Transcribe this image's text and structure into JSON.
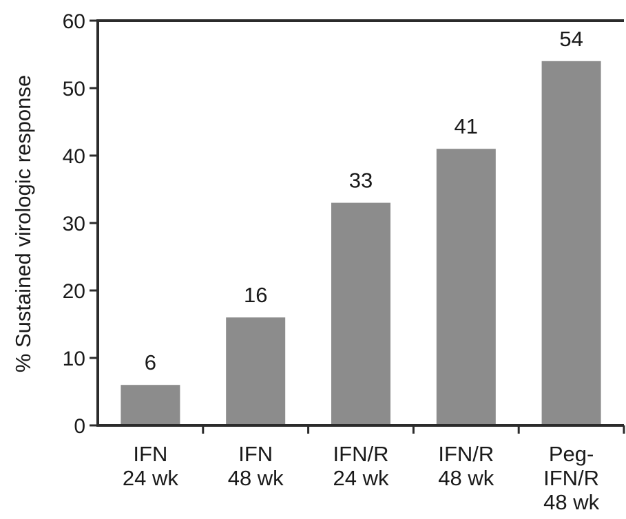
{
  "chart_data": {
    "type": "bar",
    "categories": [
      [
        "IFN",
        "24 wk"
      ],
      [
        "IFN",
        "48 wk"
      ],
      [
        "IFN/R",
        "24 wk"
      ],
      [
        "IFN/R",
        "48 wk"
      ],
      [
        "Peg-",
        "IFN/R",
        "48 wk"
      ]
    ],
    "values": [
      6,
      16,
      33,
      41,
      54
    ],
    "data_labels": [
      "6",
      "16",
      "33",
      "41",
      "54"
    ],
    "ylabel": "% Sustained virologic response",
    "xlabel": "",
    "ylim": [
      0,
      60
    ],
    "yticks": [
      0,
      10,
      20,
      30,
      40,
      50,
      60
    ],
    "ytick_labels": [
      "0",
      "10",
      "20",
      "30",
      "40",
      "50",
      "60"
    ],
    "grid": false,
    "bar_color": "#8c8c8c",
    "axis_color": "#2b2b2b"
  }
}
